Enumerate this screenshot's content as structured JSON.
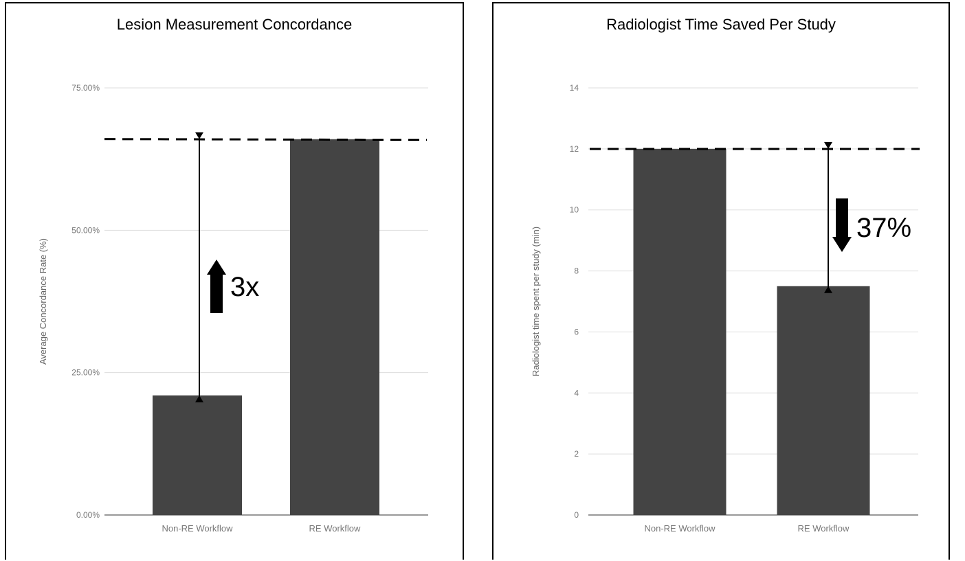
{
  "chart_data": [
    {
      "type": "bar",
      "title": "Lesion Measurement Concordance",
      "categories": [
        "Non-RE Workflow",
        "RE Workflow"
      ],
      "values": [
        21.0,
        66.0
      ],
      "ylabel": "Average Concordance Rate (%)",
      "xlabel": "",
      "ylim": [
        0,
        75
      ],
      "yticks": [
        "0.00%",
        "25.00%",
        "50.00%",
        "75.00%"
      ],
      "ytick_values": [
        0,
        25,
        50,
        75
      ],
      "grid": true,
      "bar_color": "#444444",
      "reference_line": 66.0,
      "annotation": {
        "text": "3x",
        "arrow": "up"
      }
    },
    {
      "type": "bar",
      "title": "Radiologist Time Saved Per Study",
      "categories": [
        "Non-RE Workflow",
        "RE Workflow"
      ],
      "values": [
        12.0,
        7.5
      ],
      "ylabel": "Radiologist time spent per study (min)",
      "xlabel": "",
      "ylim": [
        0,
        14
      ],
      "yticks": [
        "0",
        "2",
        "4",
        "6",
        "8",
        "10",
        "12",
        "14"
      ],
      "ytick_values": [
        0,
        2,
        4,
        6,
        8,
        10,
        12,
        14
      ],
      "grid": true,
      "bar_color": "#444444",
      "reference_line": 12.0,
      "annotation": {
        "text": "37%",
        "arrow": "down"
      }
    }
  ]
}
